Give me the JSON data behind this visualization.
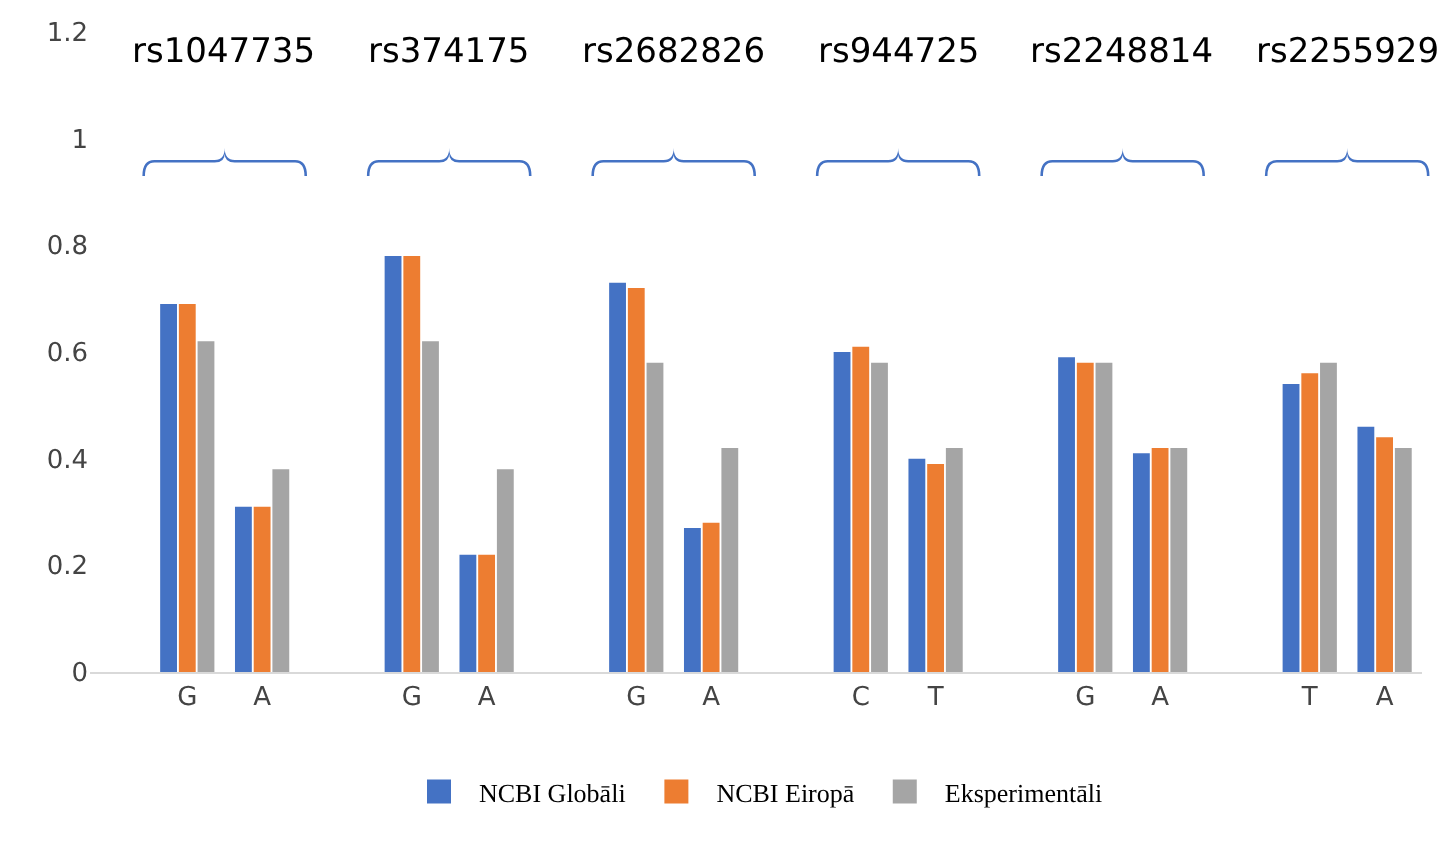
{
  "chart_data": {
    "type": "bar",
    "categories": [
      "G",
      "A",
      null,
      "G",
      "A",
      null,
      "G",
      "A",
      null,
      "C",
      "T",
      null,
      "G",
      "A",
      null,
      "T",
      "A"
    ],
    "series": [
      {
        "name": "NCBI Globāli",
        "color": "#4472c4",
        "values": [
          0.69,
          0.31,
          null,
          0.78,
          0.22,
          null,
          0.73,
          0.27,
          null,
          0.6,
          0.4,
          null,
          0.59,
          0.41,
          null,
          0.54,
          0.46
        ]
      },
      {
        "name": "NCBI Eiropā",
        "color": "#ed7d31",
        "values": [
          0.69,
          0.31,
          null,
          0.78,
          0.22,
          null,
          0.72,
          0.28,
          null,
          0.61,
          0.39,
          null,
          0.58,
          0.42,
          null,
          0.56,
          0.44
        ]
      },
      {
        "name": "Eksperimentāli",
        "color": "#a5a5a5",
        "values": [
          0.62,
          0.38,
          null,
          0.62,
          0.38,
          null,
          0.58,
          0.42,
          null,
          0.58,
          0.42,
          null,
          0.58,
          0.42,
          null,
          0.58,
          0.42
        ]
      }
    ],
    "annotations": [
      "rs1047735",
      "rs374175",
      "rs2682826",
      "rs944725",
      "rs2248814",
      "rs2255929"
    ],
    "ylim": [
      0,
      1.2
    ],
    "yticks": [
      0,
      0.2,
      0.4,
      0.6,
      0.8,
      1,
      1.2
    ],
    "grid": false,
    "legend": "bottom"
  }
}
